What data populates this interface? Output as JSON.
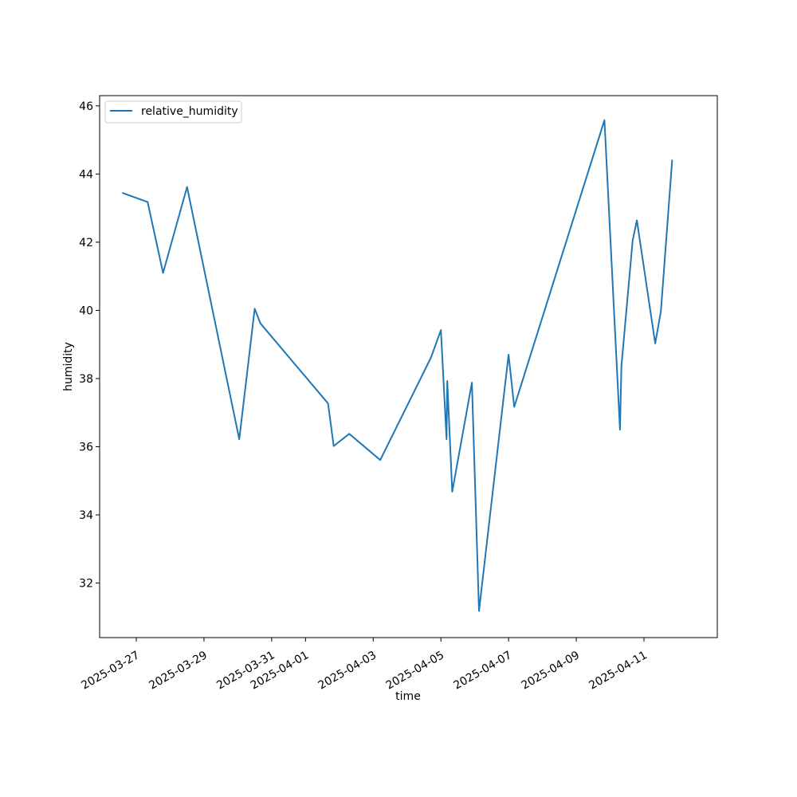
{
  "chart_data": {
    "type": "line",
    "title": "",
    "xlabel": "time",
    "ylabel": "humidity",
    "x_scale": "date",
    "xlim": [
      "2025-03-25T22:00",
      "2025-04-13T04:00"
    ],
    "ylim": [
      30.4,
      46.3
    ],
    "xticks": [
      "2025-03-27",
      "2025-03-29",
      "2025-03-31",
      "2025-04-01",
      "2025-04-03",
      "2025-04-05",
      "2025-04-07",
      "2025-04-09",
      "2025-04-11"
    ],
    "yticks": [
      32,
      34,
      36,
      38,
      40,
      42,
      44,
      46
    ],
    "grid": false,
    "legend": {
      "position": "upper-left",
      "entries": [
        "relative_humidity"
      ]
    },
    "series": [
      {
        "name": "relative_humidity",
        "color": "#1f77b4",
        "points": [
          {
            "x": "2025-03-26T14:00",
            "y": 43.45
          },
          {
            "x": "2025-03-27T08:00",
            "y": 43.18
          },
          {
            "x": "2025-03-27T19:00",
            "y": 41.1
          },
          {
            "x": "2025-03-28T12:00",
            "y": 43.62
          },
          {
            "x": "2025-03-30T01:00",
            "y": 36.22
          },
          {
            "x": "2025-03-30T12:00",
            "y": 40.05
          },
          {
            "x": "2025-03-30T16:00",
            "y": 39.62
          },
          {
            "x": "2025-04-01T16:00",
            "y": 37.27
          },
          {
            "x": "2025-04-01T20:00",
            "y": 36.02
          },
          {
            "x": "2025-04-02T07:00",
            "y": 36.38
          },
          {
            "x": "2025-04-03T05:00",
            "y": 35.61
          },
          {
            "x": "2025-04-04T17:00",
            "y": 38.62
          },
          {
            "x": "2025-04-05T00:00",
            "y": 39.42
          },
          {
            "x": "2025-04-05T04:00",
            "y": 36.22
          },
          {
            "x": "2025-04-05T04:30",
            "y": 37.93
          },
          {
            "x": "2025-04-05T08:00",
            "y": 34.68
          },
          {
            "x": "2025-04-05T22:00",
            "y": 37.88
          },
          {
            "x": "2025-04-06T03:00",
            "y": 31.18
          },
          {
            "x": "2025-04-07T00:00",
            "y": 38.7
          },
          {
            "x": "2025-04-07T04:00",
            "y": 37.17
          },
          {
            "x": "2025-04-09T20:00",
            "y": 45.58
          },
          {
            "x": "2025-04-10T07:00",
            "y": 36.5
          },
          {
            "x": "2025-04-10T08:00",
            "y": 38.37
          },
          {
            "x": "2025-04-10T16:00",
            "y": 42.05
          },
          {
            "x": "2025-04-10T19:00",
            "y": 42.64
          },
          {
            "x": "2025-04-11T08:00",
            "y": 39.03
          },
          {
            "x": "2025-04-11T12:00",
            "y": 39.97
          },
          {
            "x": "2025-04-11T20:00",
            "y": 44.42
          }
        ]
      }
    ]
  }
}
